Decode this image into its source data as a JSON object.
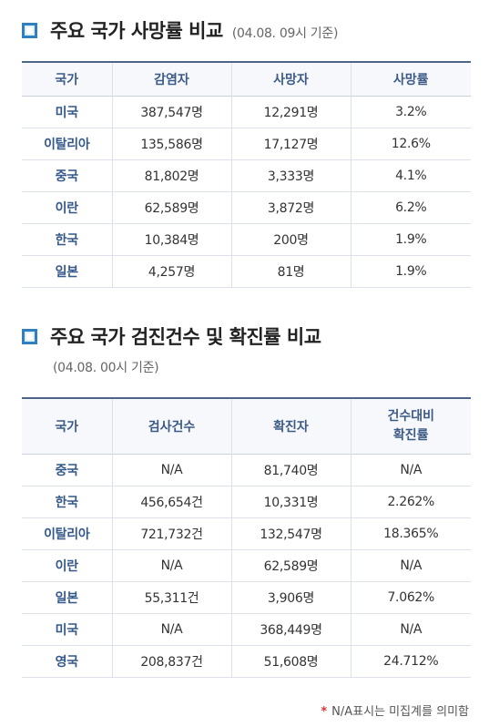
{
  "section1": {
    "title": "주요 국가 사망률 비교",
    "date": "(04.08. 09시 기준)",
    "headers": [
      "국가",
      "감염자",
      "사망자",
      "사망률"
    ],
    "rows": [
      [
        "미국",
        "387,547명",
        "12,291명",
        "3.2%"
      ],
      [
        "이탈리아",
        "135,586명",
        "17,127명",
        "12.6%"
      ],
      [
        "중국",
        "81,802명",
        "3,333명",
        "4.1%"
      ],
      [
        "이란",
        "62,589명",
        "3,872명",
        "6.2%"
      ],
      [
        "한국",
        "10,384명",
        "200명",
        "1.9%"
      ],
      [
        "일본",
        "4,257명",
        "81명",
        "1.9%"
      ]
    ]
  },
  "section2": {
    "title": "주요 국가 검진건수 및 확진률 비교",
    "date": "(04.08. 00시 기준)",
    "headers": [
      "국가",
      "검사건수",
      "확진자",
      "건수대비",
      "확진률"
    ],
    "rows": [
      [
        "중국",
        "N/A",
        "81,740명",
        "N/A"
      ],
      [
        "한국",
        "456,654건",
        "10,331명",
        "2.262%"
      ],
      [
        "이탈리아",
        "721,732건",
        "132,547명",
        "18.365%"
      ],
      [
        "이란",
        "N/A",
        "62,589명",
        "N/A"
      ],
      [
        "일본",
        "55,311건",
        "3,906명",
        "7.062%"
      ],
      [
        "미국",
        "N/A",
        "368,449명",
        "N/A"
      ],
      [
        "영국",
        "208,837건",
        "51,608명",
        "24.712%"
      ]
    ]
  },
  "footnote": {
    "star": "*",
    "text": "N/A표시는 미집계를 의미함"
  },
  "colors": {
    "bullet_border": "#2f7fc1",
    "header_text": "#3b5a86",
    "country_text": "#34588a",
    "table_top_rule": "#4b6688",
    "footnote_star": "#e03131"
  }
}
